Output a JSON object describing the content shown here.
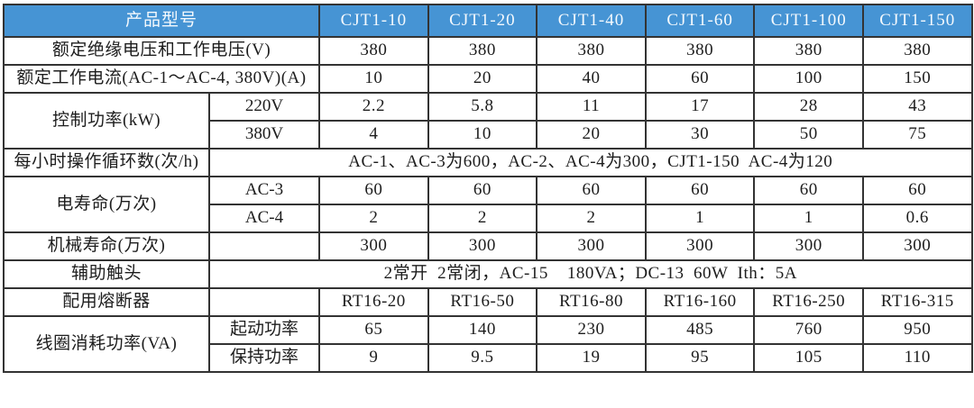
{
  "colors": {
    "header_bg": "#4694D4",
    "header_text": "#F4F9FD",
    "grid_line": "#333333",
    "outer_border": "#000000",
    "body_text": "#1D1D1D",
    "background": "#FFFFFF"
  },
  "table": {
    "header": {
      "label": "产品型号",
      "models": [
        "CJT1-10",
        "CJT1-20",
        "CJT1-40",
        "CJT1-60",
        "CJT1-100",
        "CJT1-150"
      ]
    },
    "rows": [
      {
        "type": "simple",
        "label": "额定绝缘电压和工作电压(V)",
        "label_colspan": 2,
        "values": [
          "380",
          "380",
          "380",
          "380",
          "380",
          "380"
        ]
      },
      {
        "type": "simple",
        "label": "额定工作电流(AC-1～AC-4, 380V)(A)",
        "label_colspan": 2,
        "values": [
          "10",
          "20",
          "40",
          "60",
          "100",
          "150"
        ]
      },
      {
        "type": "group",
        "label": "控制功率(kW)",
        "subs": [
          {
            "name": "220V",
            "values": [
              "2.2",
              "5.8",
              "11",
              "17",
              "28",
              "43"
            ]
          },
          {
            "name": "380V",
            "values": [
              "4",
              "10",
              "20",
              "30",
              "50",
              "75"
            ]
          }
        ]
      },
      {
        "type": "merged",
        "label": "每小时操作循环数(次/h)",
        "text": "AC-1、AC-3为600，AC-2、AC-4为300，CJT1-150  AC-4为120"
      },
      {
        "type": "group",
        "label": "电寿命(万次)",
        "subs": [
          {
            "name": "AC-3",
            "values": [
              "60",
              "60",
              "60",
              "60",
              "60",
              "60"
            ]
          },
          {
            "name": "AC-4",
            "values": [
              "2",
              "2",
              "2",
              "1",
              "1",
              "0.6"
            ]
          }
        ]
      },
      {
        "type": "simple",
        "label": "机械寿命(万次)",
        "label_colspan": 1,
        "empty_sub": true,
        "values": [
          "300",
          "300",
          "300",
          "300",
          "300",
          "300"
        ]
      },
      {
        "type": "merged",
        "label": "辅助触头",
        "text": "2常开  2常闭，AC-15    180VA；DC-13  60W  Ith：5A"
      },
      {
        "type": "simple",
        "label": "配用熔断器",
        "label_colspan": 1,
        "empty_sub": true,
        "values": [
          "RT16-20",
          "RT16-50",
          "RT16-80",
          "RT16-160",
          "RT16-250",
          "RT16-315"
        ]
      },
      {
        "type": "group",
        "label": "线圈消耗功率(VA)",
        "subs": [
          {
            "name": "起动功率",
            "values": [
              "65",
              "140",
              "230",
              "485",
              "760",
              "950"
            ]
          },
          {
            "name": "保持功率",
            "values": [
              "9",
              "9.5",
              "19",
              "95",
              "105",
              "110"
            ]
          }
        ]
      }
    ]
  }
}
